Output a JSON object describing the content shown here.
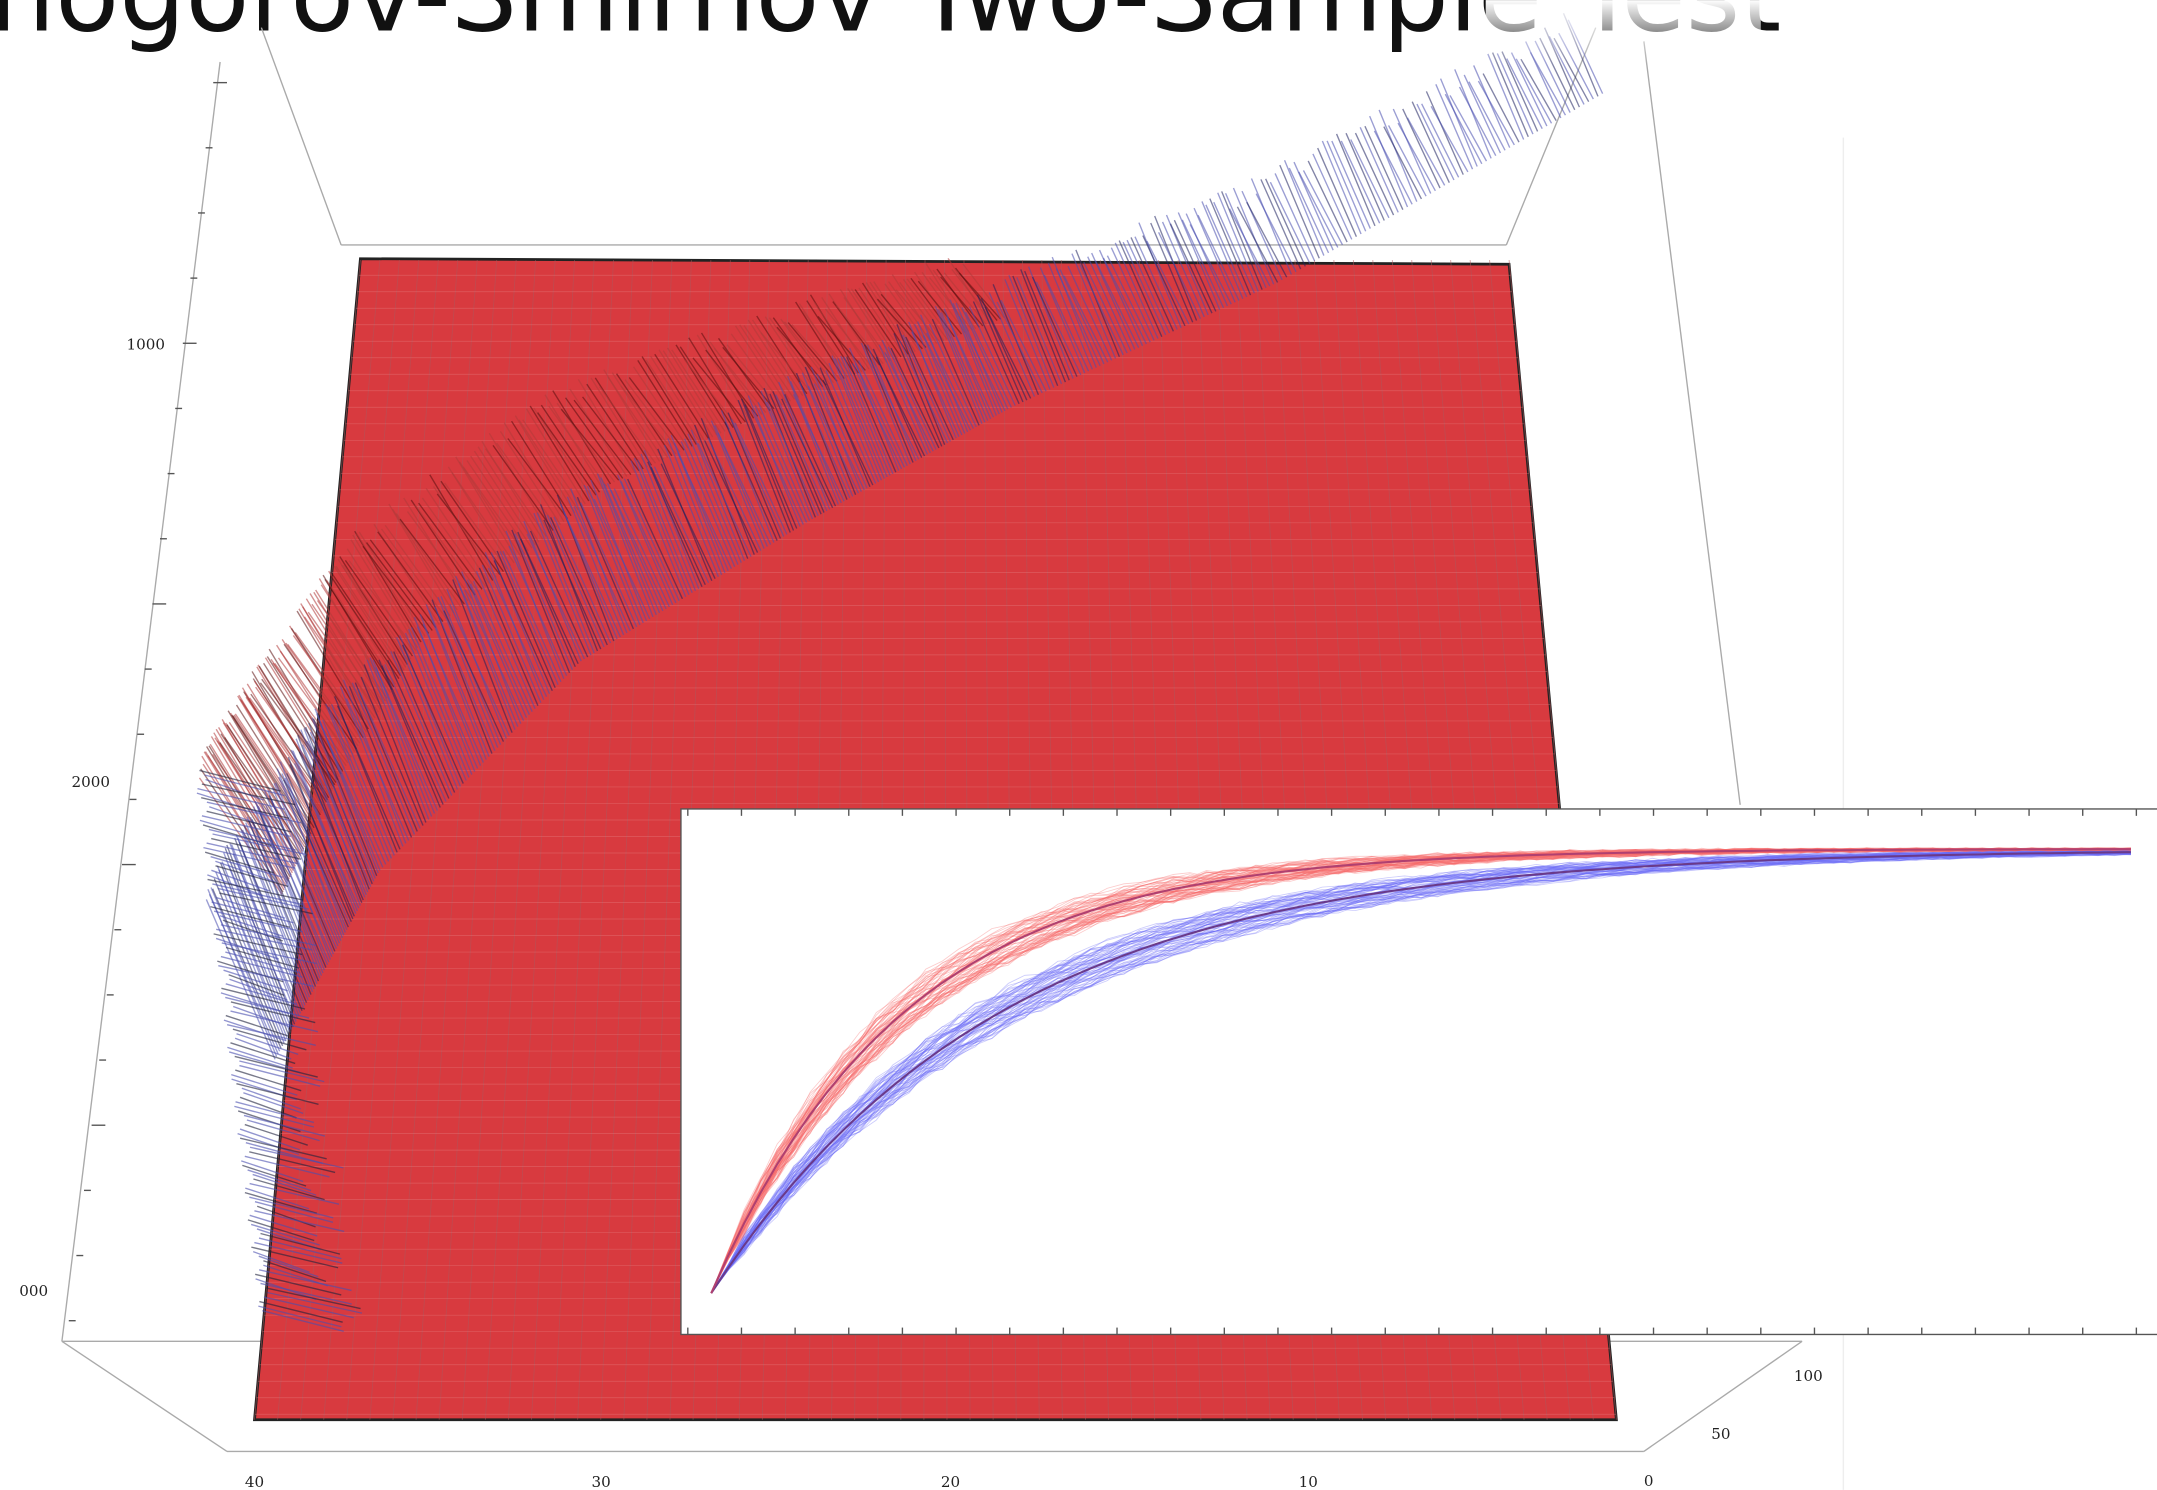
{
  "title": "nogorov-Smirnov Two-Sample Test",
  "axes": {
    "vertical_ticks": [
      "1000",
      "2000",
      "000"
    ],
    "bottom_ticks": [
      "40",
      "30",
      "20",
      "10"
    ],
    "depth_ticks": [
      "100",
      "50",
      "0"
    ]
  }
}
